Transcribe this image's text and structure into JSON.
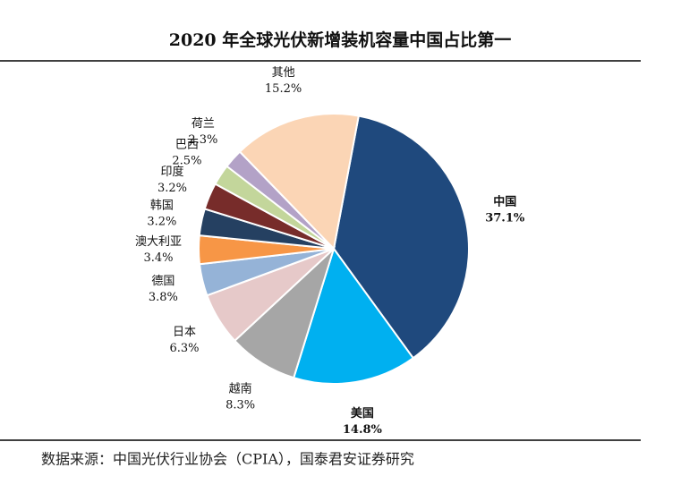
{
  "chart_data": {
    "type": "pie",
    "title": "2020 年全球光伏新增装机容量中国占比第一",
    "source": "数据来源：中国光伏行业协会（CPIA），国泰君安证券研究",
    "categories": [
      "中国",
      "美国",
      "越南",
      "日本",
      "德国",
      "澳大利亚",
      "韩国",
      "印度",
      "巴西",
      "荷兰",
      "其他"
    ],
    "values": [
      37.1,
      14.8,
      8.3,
      6.3,
      3.8,
      3.4,
      3.2,
      3.2,
      2.5,
      2.3,
      15.2
    ],
    "value_labels": [
      "37.1%",
      "14.8%",
      "8.3%",
      "6.3%",
      "3.8%",
      "3.4%",
      "3.2%",
      "3.2%",
      "2.5%",
      "2.3%",
      "15.2%"
    ],
    "colors": [
      "#1f497d",
      "#00b0f0",
      "#a6a6a6",
      "#e6c9c9",
      "#95b3d7",
      "#f79646",
      "#254061",
      "#772c2a",
      "#c3d69b",
      "#b3a2c7",
      "#fbd5b5"
    ]
  }
}
